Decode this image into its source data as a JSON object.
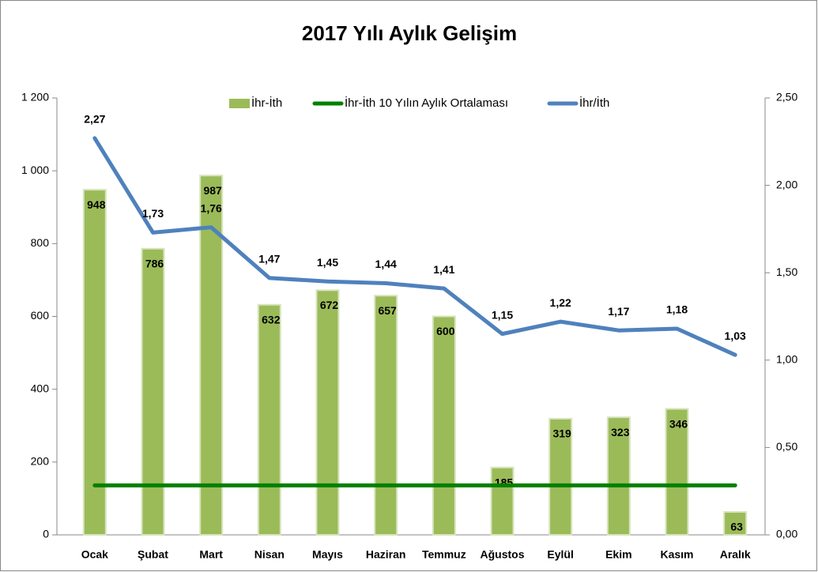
{
  "chart_data": {
    "type": "bar",
    "title": "2017 Yılı Aylık Gelişim",
    "categories": [
      "Ocak",
      "Şubat",
      "Mart",
      "Nisan",
      "Mayıs",
      "Haziran",
      "Temmuz",
      "Ağustos",
      "Eylül",
      "Ekim",
      "Kasım",
      "Aralık"
    ],
    "series": [
      {
        "name": "İhr-İth",
        "type": "bar",
        "color": "#9bbb59",
        "values": [
          948,
          786,
          987,
          632,
          672,
          657,
          600,
          185,
          319,
          323,
          346,
          63
        ]
      },
      {
        "name": "İhr-İth 10 Yılın Aylık Ortalaması",
        "type": "line",
        "color": "#008000",
        "values": [
          136,
          136,
          136,
          136,
          136,
          136,
          136,
          136,
          136,
          136,
          136,
          136
        ]
      },
      {
        "name": "İhr/İth",
        "type": "line",
        "axis": "y2",
        "color": "#4f81bd",
        "values": [
          2.27,
          1.73,
          1.76,
          1.47,
          1.45,
          1.44,
          1.41,
          1.15,
          1.22,
          1.17,
          1.18,
          1.03
        ],
        "value_labels": [
          "2,27",
          "1,73",
          "1,76",
          "1,47",
          "1,45",
          "1,44",
          "1,41",
          "1,15",
          "1,22",
          "1,17",
          "1,18",
          "1,03"
        ]
      }
    ],
    "ylim": [
      0,
      1200
    ],
    "yticks": [
      0,
      200,
      400,
      600,
      800,
      {
        "value": 1000,
        "label": "1 000"
      },
      {
        "value": 1200,
        "label": "1 200"
      }
    ],
    "y2lim": [
      0,
      2.5
    ],
    "y2ticks": [
      {
        "value": 0,
        "label": "0,00"
      },
      {
        "value": 0.5,
        "label": "0,50"
      },
      {
        "value": 1,
        "label": "1,00"
      },
      {
        "value": 1.5,
        "label": "1,50"
      },
      {
        "value": 2,
        "label": "2,00"
      },
      {
        "value": 2.5,
        "label": "2,50"
      }
    ],
    "legend": "top"
  }
}
